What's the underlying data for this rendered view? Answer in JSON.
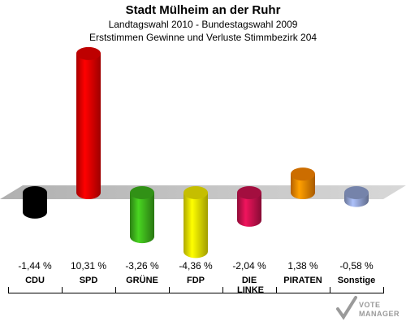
{
  "chart_data": {
    "type": "bar",
    "title": "Stadt Mülheim an der Ruhr",
    "subtitle_1": "Landtagswahl 2010 - Bundestagswahl 2009",
    "subtitle_2": "Erststimmen Gewinne und Verluste Stimmbezirk 204",
    "categories": [
      "CDU",
      "SPD",
      "GRÜNE",
      "FDP",
      "DIE LINKE",
      "PIRATEN",
      "Sonstige"
    ],
    "values": [
      -1.44,
      10.31,
      -3.26,
      -4.36,
      -2.04,
      1.38,
      -0.58
    ],
    "value_labels": [
      "-1,44 %",
      "10,31 %",
      "-3,26 %",
      "-4,36 %",
      "-2,04 %",
      "1,38 %",
      "-0,58 %"
    ],
    "colors": [
      "#000000",
      "#e00000",
      "#3aaa1a",
      "#e8e000",
      "#c0104a",
      "#f08000",
      "#8a9ac8"
    ],
    "ylim": [
      -5,
      11
    ],
    "grid": false,
    "legend": "none"
  },
  "watermark": {
    "line1": "VOTE",
    "line2": "MANAGER"
  }
}
